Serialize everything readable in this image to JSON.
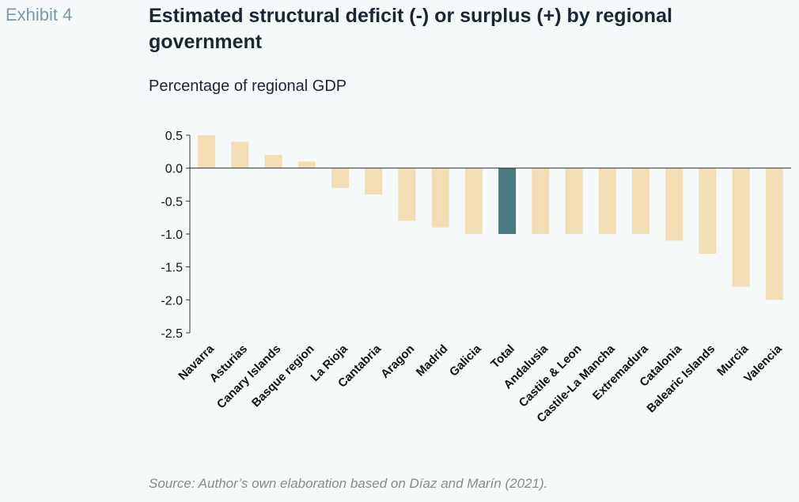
{
  "header": {
    "exhibit": "Exhibit 4",
    "title": "Estimated structural deficit (-) or surplus (+) by regional government",
    "subtitle": "Percentage of regional GDP"
  },
  "footer": {
    "source": "Source: Author’s own elaboration based on Díaz and Marín (2021)."
  },
  "colors": {
    "bar": "#f1deb4",
    "highlight": "#4a7b80",
    "axis": "#333333"
  },
  "chart_data": {
    "type": "bar",
    "title": "Estimated structural deficit (-) or surplus (+) by regional government",
    "ylabel": "Percentage of regional GDP",
    "xlabel": "",
    "ylim": [
      -2.5,
      0.5
    ],
    "yticks": [
      "0.5",
      "0.0",
      "-0.5",
      "-1.0",
      "-1.5",
      "-2.0",
      "-2.5"
    ],
    "grid": false,
    "categories": [
      "Navarra",
      "Asturias",
      "Canary Islands",
      "Basque region",
      "La Rioja",
      "Cantabria",
      "Aragon",
      "Madrid",
      "Galicia",
      "Total",
      "Andalusia",
      "Castile & Leon",
      "Castile-La Mancha",
      "Extremadura",
      "Catalonia",
      "Balearic Islands",
      "Murcia",
      "Valencia"
    ],
    "values": [
      0.5,
      0.4,
      0.2,
      0.1,
      -0.3,
      -0.4,
      -0.8,
      -0.9,
      -1.0,
      -1.0,
      -1.0,
      -1.0,
      -1.0,
      -1.0,
      -1.1,
      -1.3,
      -1.8,
      -2.0
    ],
    "highlight_category": "Total"
  }
}
